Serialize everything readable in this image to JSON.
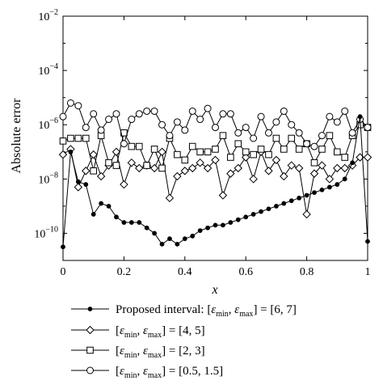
{
  "chart_data": {
    "type": "line",
    "ylabel": "Absolute error",
    "xlabel": "x",
    "xlim": [
      0,
      1
    ],
    "ylim": [
      -11,
      -2
    ],
    "yscale": "log",
    "grid": false,
    "legend_position": "bottom",
    "x_ticks": [
      {
        "v": 0,
        "label": "0"
      },
      {
        "v": 0.2,
        "label": "0.2"
      },
      {
        "v": 0.4,
        "label": "0.4"
      },
      {
        "v": 0.6,
        "label": "0.6"
      },
      {
        "v": 0.8,
        "label": "0.8"
      },
      {
        "v": 1,
        "label": "1"
      }
    ],
    "y_ticks": [
      {
        "exp": -10,
        "base": "10",
        "pow": "−10"
      },
      {
        "exp": -8,
        "base": "10",
        "pow": "−8"
      },
      {
        "exp": -6,
        "base": "10",
        "pow": "−6"
      },
      {
        "exp": -4,
        "base": "10",
        "pow": "−4"
      },
      {
        "exp": -2,
        "base": "10",
        "pow": "−2"
      }
    ],
    "series": [
      {
        "marker": "dot",
        "legend": {
          "pre": "Proposed interval: [",
          "eps": "ε",
          "sub1": "min",
          "sub2": "max",
          "post": "] = [6, 7]"
        },
        "x": [
          0,
          0.025,
          0.05,
          0.075,
          0.1,
          0.125,
          0.15,
          0.175,
          0.2,
          0.225,
          0.25,
          0.275,
          0.3,
          0.325,
          0.35,
          0.375,
          0.4,
          0.425,
          0.45,
          0.475,
          0.5,
          0.525,
          0.55,
          0.575,
          0.6,
          0.625,
          0.65,
          0.675,
          0.7,
          0.725,
          0.75,
          0.775,
          0.8,
          0.825,
          0.85,
          0.875,
          0.9,
          0.925,
          0.95,
          0.975,
          1
        ],
        "log10": [
          -10.5,
          -7.0,
          -8.1,
          -8.2,
          -9.3,
          -8.9,
          -9.0,
          -9.4,
          -9.6,
          -9.6,
          -9.6,
          -9.8,
          -10.0,
          -10.4,
          -10.2,
          -10.4,
          -10.2,
          -10.1,
          -9.9,
          -9.8,
          -9.7,
          -9.7,
          -9.6,
          -9.5,
          -9.4,
          -9.3,
          -9.2,
          -9.1,
          -9.0,
          -8.9,
          -8.8,
          -8.7,
          -8.6,
          -8.5,
          -8.4,
          -8.3,
          -8.2,
          -8.0,
          -7.4,
          -5.7,
          -10.3
        ]
      },
      {
        "marker": "diamond",
        "legend": {
          "pre": "[",
          "eps": "ε",
          "sub1": "min",
          "sub2": "max",
          "post": "] = [4, 5]"
        },
        "x": [
          0,
          0.025,
          0.05,
          0.075,
          0.1,
          0.125,
          0.15,
          0.175,
          0.2,
          0.225,
          0.25,
          0.275,
          0.3,
          0.325,
          0.35,
          0.375,
          0.4,
          0.425,
          0.45,
          0.475,
          0.5,
          0.525,
          0.55,
          0.575,
          0.6,
          0.625,
          0.65,
          0.675,
          0.7,
          0.725,
          0.75,
          0.775,
          0.8,
          0.825,
          0.85,
          0.875,
          0.9,
          0.925,
          0.95,
          0.975,
          1
        ],
        "log10": [
          -7.1,
          -6.9,
          -8.3,
          -7.7,
          -7.1,
          -7.9,
          -7.5,
          -7.0,
          -8.2,
          -7.4,
          -7.6,
          -7.5,
          -7.6,
          -7.0,
          -8.7,
          -7.9,
          -7.7,
          -7.6,
          -7.4,
          -7.6,
          -7.3,
          -8.6,
          -7.8,
          -7.6,
          -7.2,
          -8.0,
          -7.0,
          -7.7,
          -7.3,
          -7.9,
          -7.5,
          -7.6,
          -9.3,
          -7.8,
          -7.5,
          -8.0,
          -7.6,
          -7.6,
          -7.5,
          -7.2,
          -7.2
        ]
      },
      {
        "marker": "square",
        "legend": {
          "pre": "[",
          "eps": "ε",
          "sub1": "min",
          "sub2": "max",
          "post": "] = [2, 3]"
        },
        "x": [
          0,
          0.025,
          0.05,
          0.075,
          0.1,
          0.125,
          0.15,
          0.175,
          0.2,
          0.225,
          0.25,
          0.275,
          0.3,
          0.325,
          0.35,
          0.375,
          0.4,
          0.425,
          0.45,
          0.475,
          0.5,
          0.525,
          0.55,
          0.575,
          0.6,
          0.625,
          0.65,
          0.675,
          0.7,
          0.725,
          0.75,
          0.775,
          0.8,
          0.825,
          0.85,
          0.875,
          0.9,
          0.925,
          0.95,
          0.975,
          1
        ],
        "log10": [
          -6.6,
          -6.5,
          -6.5,
          -6.5,
          -7.7,
          -6.4,
          -7.4,
          -7.5,
          -6.3,
          -6.8,
          -6.8,
          -7.5,
          -6.9,
          -7.6,
          -6.5,
          -7.1,
          -7.3,
          -6.8,
          -7.0,
          -7.0,
          -6.9,
          -6.4,
          -7.2,
          -6.7,
          -7.0,
          -7.1,
          -6.9,
          -7.1,
          -6.5,
          -6.9,
          -6.5,
          -6.9,
          -6.7,
          -7.4,
          -6.9,
          -6.4,
          -7.0,
          -7.2,
          -6.4,
          -6.0,
          -6.1
        ]
      },
      {
        "marker": "circle",
        "legend": {
          "pre": "[",
          "eps": "ε",
          "sub1": "min",
          "sub2": "max",
          "post": "] = [0.5, 1.5]"
        },
        "x": [
          0,
          0.025,
          0.05,
          0.075,
          0.1,
          0.125,
          0.15,
          0.175,
          0.2,
          0.225,
          0.25,
          0.275,
          0.3,
          0.325,
          0.35,
          0.375,
          0.4,
          0.425,
          0.45,
          0.475,
          0.5,
          0.525,
          0.55,
          0.575,
          0.6,
          0.625,
          0.65,
          0.675,
          0.7,
          0.725,
          0.75,
          0.775,
          0.8,
          0.825,
          0.85,
          0.875,
          0.9,
          0.925,
          0.95,
          0.975,
          1
        ],
        "log10": [
          -5.7,
          -5.2,
          -5.3,
          -6.1,
          -5.6,
          -6.2,
          -5.8,
          -5.6,
          -6.7,
          -5.8,
          -5.6,
          -5.5,
          -5.5,
          -6.0,
          -6.4,
          -5.9,
          -6.2,
          -5.5,
          -5.8,
          -5.4,
          -6.1,
          -5.6,
          -5.6,
          -6.3,
          -6.1,
          -6.5,
          -5.7,
          -6.3,
          -5.9,
          -5.5,
          -6.0,
          -6.3,
          -6.7,
          -6.8,
          -6.4,
          -5.7,
          -5.9,
          -5.5,
          -6.3,
          -5.8,
          -6.1
        ]
      }
    ]
  }
}
